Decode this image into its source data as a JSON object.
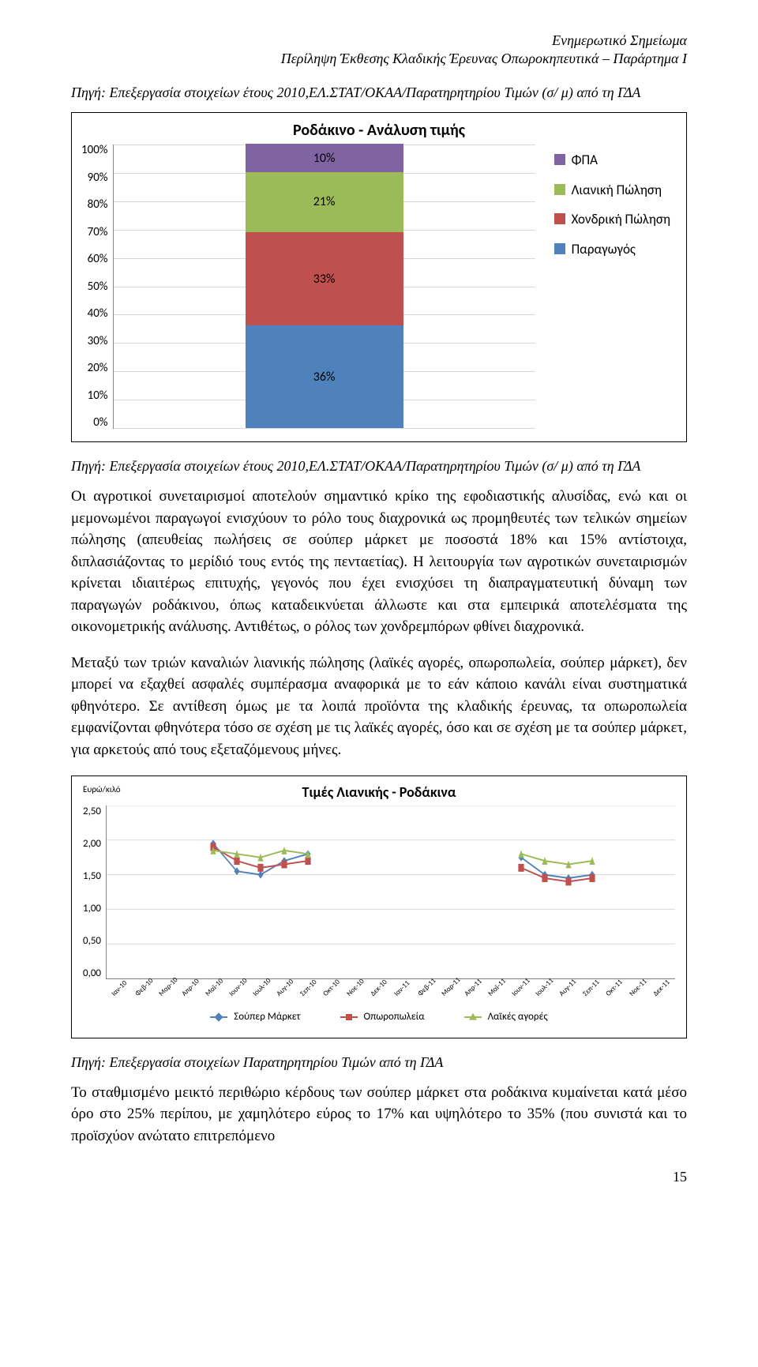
{
  "header": {
    "line1": "Ενημερωτικό Σημείωμα",
    "line2": "Περίληψη Έκθεσης Κλαδικής Έρευνας Οπωροκηπευτικά – Παράρτημα Ι"
  },
  "source_line_1": "Πηγή: Επεξεργασία στοιχείων έτους 2010,ΕΛ.ΣΤΑΤ/ΟΚΑΑ/Παρατηρητηρίου Τιμών (σ/ μ) από τη ΓΔΑ",
  "chart1": {
    "title": "Ροδάκινο - Ανάλυση τιμής",
    "y_ticks": [
      "100%",
      "90%",
      "80%",
      "70%",
      "60%",
      "50%",
      "40%",
      "30%",
      "20%",
      "10%",
      "0%"
    ],
    "segments": [
      {
        "key": "paragogos",
        "value": 36,
        "label": "36%",
        "color": "#4f81bd"
      },
      {
        "key": "xondriki",
        "value": 33,
        "label": "33%",
        "color": "#c0504d"
      },
      {
        "key": "lianiki",
        "value": 21,
        "label": "21%",
        "color": "#9bbb59"
      },
      {
        "key": "fpa",
        "value": 10,
        "label": "10%",
        "color": "#8064a2"
      }
    ],
    "legend": [
      {
        "color": "#8064a2",
        "text": "ΦΠΑ"
      },
      {
        "color": "#9bbb59",
        "text": "Λιανική Πώληση"
      },
      {
        "color": "#c0504d",
        "text": "Χονδρική Πώληση"
      },
      {
        "color": "#4f81bd",
        "text": "Παραγωγός"
      }
    ]
  },
  "source_line_2": "Πηγή: Επεξεργασία στοιχείων έτους 2010,ΕΛ.ΣΤΑΤ/ΟΚΑΑ/Παρατηρητηρίου Τιμών (σ/ μ) από τη ΓΔΑ",
  "para1": "Οι αγροτικοί συνεταιρισμοί αποτελούν σημαντικό κρίκο της εφοδιαστικής αλυσίδας, ενώ και οι μεμονωμένοι παραγωγοί ενισχύουν το ρόλο τους διαχρονικά ως προμηθευτές των τελικών σημείων πώλησης (απευθείας πωλήσεις σε σούπερ μάρκετ με ποσοστά 18% και 15% αντίστοιχα, διπλασιάζοντας το μερίδιό τους εντός της πενταετίας). Η λειτουργία των αγροτικών συνεταιρισμών κρίνεται ιδιαιτέρως επιτυχής, γεγονός που έχει ενισχύσει τη διαπραγματευτική δύναμη των παραγωγών ροδάκινου, όπως καταδεικνύεται άλλωστε και στα εμπειρικά αποτελέσματα της οικονομετρικής ανάλυσης. Αντιθέτως, ο ρόλος των χονδρεμπόρων φθίνει διαχρονικά.",
  "para2": "Μεταξύ των τριών καναλιών λιανικής πώλησης (λαϊκές αγορές, οπωροπωλεία, σούπερ μάρκετ), δεν μπορεί να εξαχθεί ασφαλές συμπέρασμα αναφορικά με το εάν κάποιο κανάλι είναι συστηματικά φθηνότερο. Σε αντίθεση όμως με τα λοιπά προϊόντα της κλαδικής έρευνας, τα οπωροπωλεία εμφανίζονται φθηνότερα τόσο σε σχέση με τις λαϊκές αγορές, όσο και σε σχέση με τα σούπερ μάρκετ, για αρκετούς από τους εξεταζόμενους μήνες.",
  "chart2": {
    "ylabel": "Ευρώ/κιλό",
    "title": "Τιμές Λιανικής - Ροδάκινα",
    "y_ticks": [
      "2,50",
      "2,00",
      "1,50",
      "1,00",
      "0,50",
      "0,00"
    ],
    "ymax": 2.5,
    "x_labels": [
      "Ιαν-10",
      "Φεβ-10",
      "Μαρ-10",
      "Απρ-10",
      "Μαϊ-10",
      "Ιουν-10",
      "Ιουλ-10",
      "Αυγ-10",
      "Σεπ-10",
      "Οκτ-10",
      "Νοε-10",
      "Δεκ-10",
      "Ιαν-11",
      "Φεβ-11",
      "Μαρ-11",
      "Απρ-11",
      "Μαϊ-11",
      "Ιουν-11",
      "Ιουλ-11",
      "Αυγ-11",
      "Σεπ-11",
      "Οκτ-11",
      "Νοε-11",
      "Δεκ-11"
    ],
    "series": [
      {
        "name": "Σούπερ Μάρκετ",
        "color": "#4f81bd",
        "marker": "diamond",
        "points": [
          null,
          null,
          null,
          null,
          1.95,
          1.55,
          1.5,
          1.7,
          1.8,
          null,
          null,
          null,
          null,
          null,
          null,
          null,
          null,
          1.75,
          1.5,
          1.45,
          1.5,
          null,
          null,
          null
        ]
      },
      {
        "name": "Οπωροπωλεία",
        "color": "#c0504d",
        "marker": "square",
        "points": [
          null,
          null,
          null,
          null,
          1.9,
          1.7,
          1.6,
          1.65,
          1.7,
          null,
          null,
          null,
          null,
          null,
          null,
          null,
          null,
          1.6,
          1.45,
          1.4,
          1.45,
          null,
          null,
          null
        ]
      },
      {
        "name": "Λαϊκές αγορές",
        "color": "#9bbb59",
        "marker": "triangle",
        "points": [
          null,
          null,
          null,
          null,
          1.85,
          1.8,
          1.75,
          1.85,
          1.8,
          null,
          null,
          null,
          null,
          null,
          null,
          null,
          null,
          1.8,
          1.7,
          1.65,
          1.7,
          null,
          null,
          null
        ]
      }
    ],
    "legend": [
      {
        "color": "#4f81bd",
        "text": "Σούπερ Μάρκετ",
        "marker": "diamond"
      },
      {
        "color": "#c0504d",
        "text": "Οπωροπωλεία",
        "marker": "square"
      },
      {
        "color": "#9bbb59",
        "text": "Λαϊκές αγορές",
        "marker": "triangle"
      }
    ]
  },
  "source_line_3": "Πηγή: Επεξεργασία στοιχείων Παρατηρητηρίου Τιμών από τη  ΓΔΑ",
  "para3": "Το σταθμισμένο μεικτό περιθώριο κέρδους των σούπερ μάρκετ στα ροδάκινα κυμαίνεται κατά μέσο όρο στο 25% περίπου, με χαμηλότερο εύρος το 17% και υψηλότερο το 35% (που συνιστά και το προϊσχύον ανώτατο επιτρεπόμενο",
  "page_number": "15"
}
